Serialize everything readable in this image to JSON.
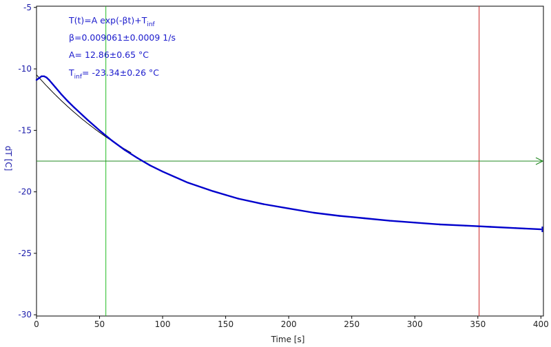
{
  "chart_data": {
    "type": "line",
    "xlabel": "Time [s]",
    "ylabel": "dT [C]",
    "xlim": [
      0,
      402
    ],
    "ylim": [
      -30.1,
      -4.9
    ],
    "x_ticks": [
      0,
      50,
      100,
      150,
      200,
      250,
      300,
      350,
      400
    ],
    "y_ticks": [
      -5,
      -10,
      -15,
      -20,
      -25,
      -30
    ],
    "grid": false,
    "colors": {
      "measured": "#0000cc",
      "fit": "#000000",
      "cursor_green": "#22bb22",
      "cursor_red": "#cc2222",
      "horizontal_cursor": "#228822",
      "ytext": "#1a1aaa"
    },
    "annotations": {
      "formula_main": "T(t)=A exp(-βt)+T",
      "formula_sub": "inf",
      "beta": "β=0.009061±0.0009 1/s",
      "A": "A= 12.86±0.65 °C",
      "tinf_main": "T",
      "tinf_sub": "inf",
      "tinf_rest": "= -23.34±0.26 °C"
    },
    "fit": {
      "A": 12.86,
      "beta": 0.009061,
      "T_inf": -23.34
    },
    "series": [
      {
        "role": "measured",
        "x": [
          0,
          2,
          4,
          6,
          8,
          10,
          15,
          20,
          25,
          30,
          40,
          50,
          60,
          70,
          80,
          90,
          100,
          120,
          140,
          150,
          160,
          180,
          200,
          220,
          240,
          250,
          260,
          280,
          300,
          320,
          340,
          350,
          360,
          380,
          400
        ],
        "y": [
          -10.9,
          -10.75,
          -10.6,
          -10.6,
          -10.7,
          -10.9,
          -11.5,
          -12.1,
          -12.65,
          -13.15,
          -14.1,
          -15.0,
          -15.85,
          -16.6,
          -17.25,
          -17.85,
          -18.35,
          -19.25,
          -19.95,
          -20.25,
          -20.55,
          -21.0,
          -21.35,
          -21.7,
          -21.95,
          -22.05,
          -22.15,
          -22.35,
          -22.5,
          -22.65,
          -22.75,
          -22.8,
          -22.85,
          -22.95,
          -23.05
        ]
      }
    ],
    "cursors": {
      "vertical": [
        55,
        351
      ],
      "horizontal": -17.5
    }
  }
}
